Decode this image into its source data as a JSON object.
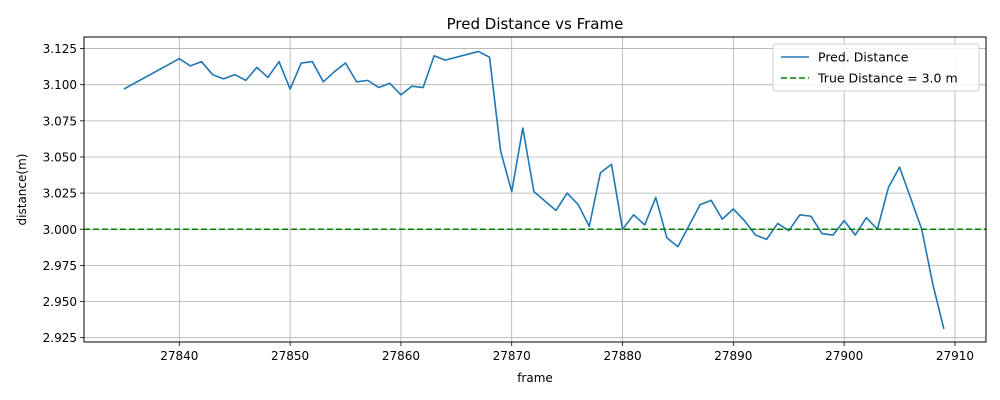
{
  "chart_data": {
    "type": "line",
    "title": "Pred Distance vs Frame",
    "xlabel": "frame",
    "ylabel": "distance(m)",
    "xlim": [
      27831.4,
      27912.8
    ],
    "ylim": [
      2.922,
      3.133
    ],
    "xticks": [
      27840,
      27850,
      27860,
      27870,
      27880,
      27890,
      27900,
      27910
    ],
    "yticks": [
      2.925,
      2.95,
      2.975,
      3.0,
      3.025,
      3.05,
      3.075,
      3.1,
      3.125
    ],
    "ytick_labels": [
      "2.925",
      "2.950",
      "2.975",
      "3.000",
      "3.025",
      "3.050",
      "3.075",
      "3.100",
      "3.125"
    ],
    "grid": true,
    "legend_position": "top-right",
    "series": [
      {
        "name": "Pred. Distance",
        "color": "#1f77b4",
        "style": "solid",
        "x": [
          27835,
          27840,
          27841,
          27842,
          27843,
          27844,
          27845,
          27846,
          27847,
          27848,
          27849,
          27850,
          27851,
          27852,
          27853,
          27854,
          27855,
          27856,
          27857,
          27858,
          27859,
          27860,
          27861,
          27862,
          27863,
          27864,
          27867,
          27868,
          27869,
          27870,
          27871,
          27872,
          27874,
          27875,
          27876,
          27877,
          27878,
          27879,
          27880,
          27881,
          27882,
          27883,
          27884,
          27885,
          27887,
          27888,
          27889,
          27890,
          27891,
          27892,
          27893,
          27894,
          27895,
          27896,
          27897,
          27898,
          27899,
          27900,
          27901,
          27902,
          27903,
          27904,
          27905,
          27907,
          27908,
          27909
        ],
        "y": [
          3.097,
          3.118,
          3.113,
          3.116,
          3.107,
          3.104,
          3.107,
          3.103,
          3.112,
          3.105,
          3.116,
          3.097,
          3.115,
          3.116,
          3.102,
          3.109,
          3.115,
          3.102,
          3.103,
          3.098,
          3.101,
          3.093,
          3.099,
          3.098,
          3.12,
          3.117,
          3.123,
          3.119,
          3.054,
          3.026,
          3.07,
          3.026,
          3.013,
          3.025,
          3.017,
          3.002,
          3.039,
          3.045,
          3.0,
          3.01,
          3.003,
          3.022,
          2.994,
          2.988,
          3.017,
          3.02,
          3.007,
          3.014,
          3.006,
          2.996,
          2.993,
          3.004,
          2.999,
          3.01,
          3.009,
          2.997,
          2.996,
          3.006,
          2.996,
          3.008,
          3.0,
          3.029,
          3.043,
          3.0,
          2.962,
          2.931
        ]
      },
      {
        "name": "True Distance = 3.0 m",
        "color": "#008000",
        "style": "dashed",
        "hline": 3.0
      }
    ]
  }
}
